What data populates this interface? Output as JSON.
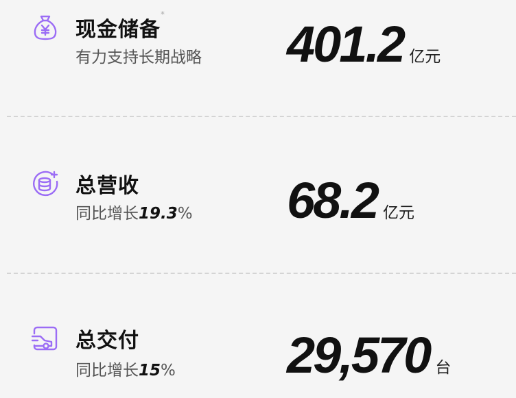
{
  "accent_color": "#9b6cf5",
  "items": [
    {
      "icon": "money-bag-yen-icon",
      "title": "现金储备",
      "footnote_mark": "*",
      "subtitle": "有力支持长期战略",
      "value": "401.2",
      "unit": "亿元"
    },
    {
      "icon": "coins-plus-icon",
      "title": "总营收",
      "subtitle_prefix": "同比增长",
      "growth": "19.3",
      "percent": "%",
      "value": "68.2",
      "unit": "亿元"
    },
    {
      "icon": "car-delivery-icon",
      "title": "总交付",
      "subtitle_prefix": "同比增长",
      "growth": "15",
      "percent": "%",
      "value": "29,570",
      "unit": "台"
    }
  ]
}
